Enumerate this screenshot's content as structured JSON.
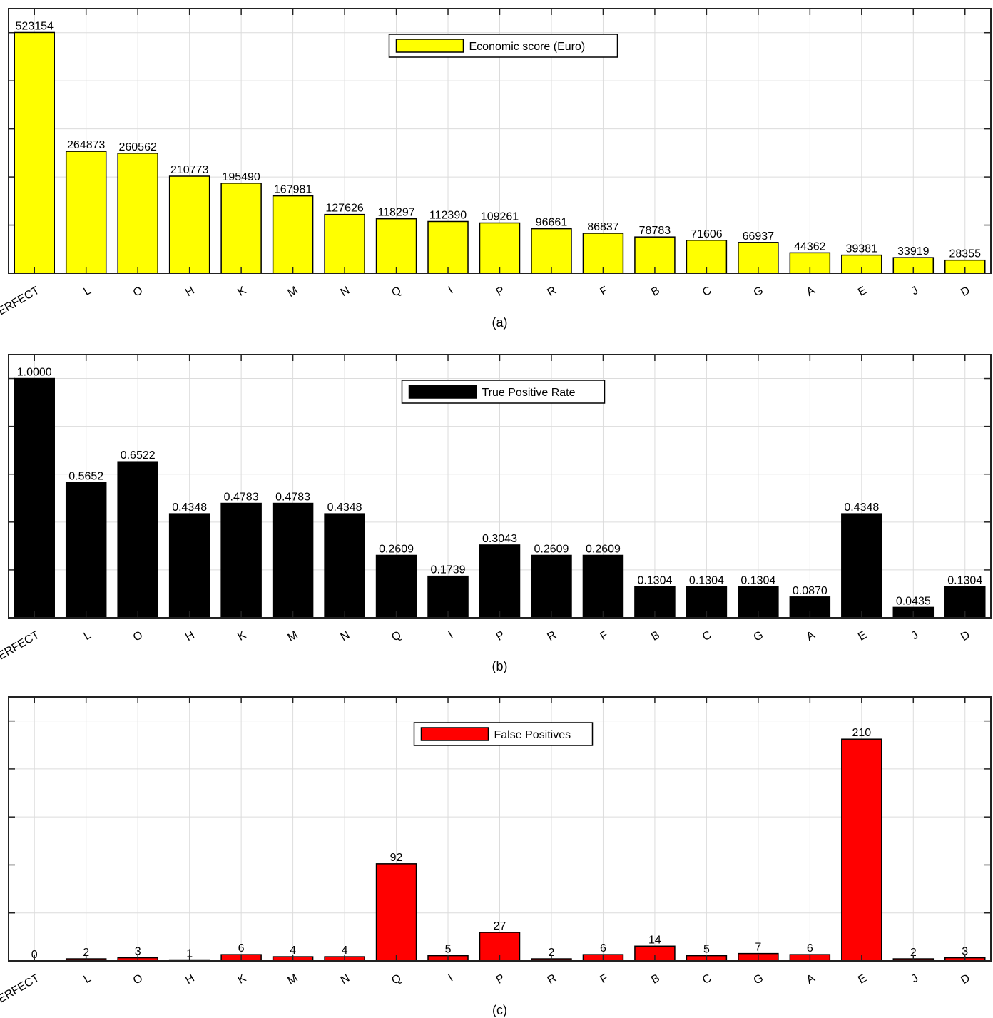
{
  "chart_data": [
    {
      "type": "bar",
      "categories": [
        "PERFECT",
        "L",
        "O",
        "H",
        "K",
        "M",
        "N",
        "Q",
        "I",
        "P",
        "R",
        "F",
        "B",
        "C",
        "G",
        "A",
        "E",
        "J",
        "D"
      ],
      "series": [
        {
          "name": "Economic score (Euro)",
          "values": [
            523154,
            264873,
            260562,
            210773,
            195490,
            167981,
            127626,
            118297,
            112390,
            109261,
            96661,
            86837,
            78783,
            71606,
            66937,
            44362,
            39381,
            33919,
            28355
          ]
        }
      ],
      "value_labels": [
        "523154",
        "264873",
        "260562",
        "210773",
        "195490",
        "167981",
        "127626",
        "118297",
        "112390",
        "109261",
        "96661",
        "86837",
        "78783",
        "71606",
        "66937",
        "44362",
        "39381",
        "33919",
        "28355"
      ],
      "caption": "(a)",
      "ylim": [
        0,
        575000
      ],
      "grid": true,
      "legend_position": "top-center",
      "bar_color": "#ffff00"
    },
    {
      "type": "bar",
      "categories": [
        "PERFECT",
        "L",
        "O",
        "H",
        "K",
        "M",
        "N",
        "Q",
        "I",
        "P",
        "R",
        "F",
        "B",
        "C",
        "G",
        "A",
        "E",
        "J",
        "D"
      ],
      "series": [
        {
          "name": "True Positive Rate",
          "values": [
            1.0,
            0.5652,
            0.6522,
            0.4348,
            0.4783,
            0.4783,
            0.4348,
            0.2609,
            0.1739,
            0.3043,
            0.2609,
            0.2609,
            0.1304,
            0.1304,
            0.1304,
            0.087,
            0.4348,
            0.0435,
            0.1304
          ]
        }
      ],
      "value_labels": [
        "1.0000",
        "0.5652",
        "0.6522",
        "0.4348",
        "0.4783",
        "0.4783",
        "0.4348",
        "0.2609",
        "0.1739",
        "0.3043",
        "0.2609",
        "0.2609",
        "0.1304",
        "0.1304",
        "0.1304",
        "0.0870",
        "0.4348",
        "0.0435",
        "0.1304"
      ],
      "caption": "(b)",
      "ylim": [
        0,
        1.1
      ],
      "grid": true,
      "legend_position": "top-center",
      "bar_color": "#000000"
    },
    {
      "type": "bar",
      "categories": [
        "PERFECT",
        "L",
        "O",
        "H",
        "K",
        "M",
        "N",
        "Q",
        "I",
        "P",
        "R",
        "F",
        "B",
        "C",
        "G",
        "A",
        "E",
        "J",
        "D"
      ],
      "series": [
        {
          "name": "False Positives",
          "values": [
            0,
            2,
            3,
            1,
            6,
            4,
            4,
            92,
            5,
            27,
            2,
            6,
            14,
            5,
            7,
            6,
            210,
            2,
            3
          ]
        }
      ],
      "value_labels": [
        "0",
        "2",
        "3",
        "1",
        "6",
        "4",
        "4",
        "92",
        "5",
        "27",
        "2",
        "6",
        "14",
        "5",
        "7",
        "6",
        "210",
        "2",
        "3"
      ],
      "caption": "(c)",
      "ylim": [
        0,
        250
      ],
      "grid": true,
      "legend_position": "top-center",
      "bar_color": "#ff0000"
    }
  ]
}
